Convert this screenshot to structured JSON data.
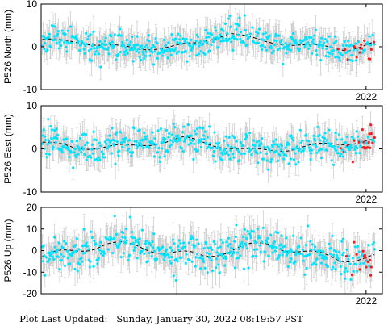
{
  "footer": {
    "label": "Plot Last Updated:",
    "value": "Sunday, January 30, 2022 08:19:57 PST"
  },
  "colors": {
    "rapid": "#00e5ff",
    "final": "#ff1a1a",
    "error_bar": "#c8c8c8",
    "model": "#000000"
  },
  "chart_data": [
    {
      "type": "scatter",
      "ylabel": "P526 North (mm)",
      "ylim": [
        -10,
        10
      ],
      "yticks": [
        10,
        0,
        -10
      ],
      "xlim": [
        2017.0,
        2022.25
      ],
      "xtick_label": "2022",
      "xtick_value": 2022.0,
      "grid": false,
      "seed": 11,
      "model": {
        "mean": 0.2,
        "trend": [
          [
            2017.0,
            1.5
          ],
          [
            2017.8,
            0.6
          ],
          [
            2018.5,
            -0.8
          ],
          [
            2019.4,
            0.5
          ],
          [
            2019.9,
            3.2
          ],
          [
            2020.4,
            1.0
          ],
          [
            2021.2,
            0.0
          ],
          [
            2021.7,
            -0.8
          ],
          [
            2022.1,
            0.6
          ]
        ],
        "seasonal_amp": 0.4,
        "noise": 1.6,
        "err": 3.2,
        "red_from": 2021.55
      }
    },
    {
      "type": "scatter",
      "ylabel": "P526 East (mm)",
      "ylim": [
        -10,
        10
      ],
      "yticks": [
        10,
        0,
        -10
      ],
      "xlim": [
        2017.0,
        2022.25
      ],
      "xtick_label": "2022",
      "xtick_value": 2022.0,
      "grid": false,
      "seed": 29,
      "model": {
        "mean": 0.0,
        "trend": [
          [
            2017.0,
            1.5
          ],
          [
            2017.5,
            0.3
          ],
          [
            2018.4,
            0.6
          ],
          [
            2019.2,
            2.4
          ],
          [
            2019.6,
            1.2
          ],
          [
            2020.2,
            -0.5
          ],
          [
            2020.8,
            0.0
          ],
          [
            2021.4,
            1.0
          ],
          [
            2022.1,
            2.0
          ]
        ],
        "seasonal_amp": 0.5,
        "noise": 1.8,
        "err": 3.0,
        "red_from": 2021.55
      }
    },
    {
      "type": "scatter",
      "ylabel": "P526 Up (mm)",
      "ylim": [
        -20,
        20
      ],
      "yticks": [
        20,
        10,
        0,
        -10,
        -20
      ],
      "xlim": [
        2017.0,
        2022.25
      ],
      "xtick_label": "2022",
      "xtick_value": 2022.0,
      "grid": false,
      "seed": 47,
      "model": {
        "mean": 0.0,
        "trend": [
          [
            2017.0,
            -3.0
          ],
          [
            2017.5,
            0.0
          ],
          [
            2018.0,
            3.0
          ],
          [
            2018.5,
            2.0
          ],
          [
            2019.0,
            -1.0
          ],
          [
            2019.5,
            -2.5
          ],
          [
            2020.0,
            1.0
          ],
          [
            2020.5,
            3.0
          ],
          [
            2021.0,
            -0.5
          ],
          [
            2021.6,
            -4.0
          ],
          [
            2022.1,
            -3.0
          ]
        ],
        "seasonal_amp": 1.5,
        "noise": 4.0,
        "err": 7.0,
        "red_from": 2021.55
      }
    }
  ]
}
